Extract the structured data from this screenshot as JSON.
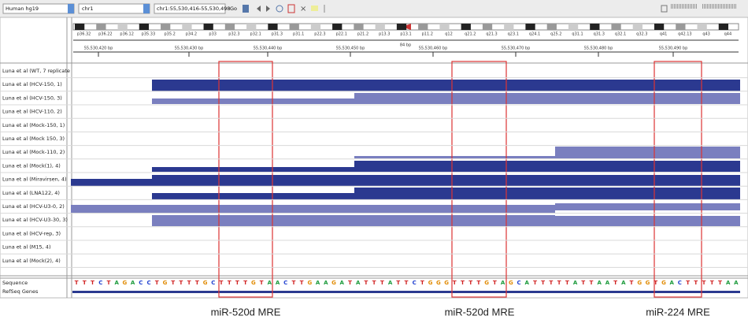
{
  "toolbar": {
    "genome": "Human hg19",
    "chromosome": "chr1",
    "locus": "chr1:55,530,416-55,530,498",
    "go": "Go"
  },
  "ideogram_bands": [
    "p36.32",
    "p36.22",
    "p36.12",
    "p35.33",
    "p35.2",
    "p34.2",
    "p33",
    "p32.3",
    "p32.1",
    "p31.3",
    "p31.1",
    "p22.3",
    "p22.1",
    "p21.2",
    "p13.3",
    "p13.1",
    "p11.2",
    "q12",
    "q21.2",
    "q21.3",
    "q23.1",
    "q24.1",
    "q25.2",
    "q31.1",
    "q31.3",
    "q32.1",
    "q32.3",
    "q41",
    "q42.13",
    "q43",
    "q44"
  ],
  "scale": "84 bp",
  "ruler_ticks": [
    "55,530,420 bp",
    "55,530,430 bp",
    "55,530,440 bp",
    "55,530,450 bp",
    "55,530,460 bp",
    "55,530,470 bp",
    "55,530,480 bp",
    "55,530,490 bp"
  ],
  "tracks": [
    "Luna et al (WT, 7 replicate",
    "Luna et al (HCV-150, 1)",
    "Luna et al (HCV-150, 3)",
    "Luna et al (HCV-110, 2)",
    "Luna et al (Mock-150, 1)",
    "Luna et al (Mock 150, 3)",
    "Luna et al (Mock-110, 2)",
    "Luna et al (Mock(1), 4)",
    "Luna et al (Miravirsen, 4)",
    "Luna et al (LNA122, 4)",
    "Luna et al (HCV-U3-0, 2)",
    "Luna et al (HCV-U3-30, 3)",
    "Luna et al (HCV-rep, 3)",
    "Luna et al (M15, 4)",
    "Luna et al (Mock(2), 4)"
  ],
  "bottom_tracks": [
    "Sequence",
    "RefSeq Genes"
  ],
  "sequence": "TTTCTAGACCTGTTTTGCTTTTGTAACTTGAAGATATTTATTCTGGGTTTTGTAGCATTTTTATTAATATGGTGACTTTTTAA",
  "annotations": [
    "miR-520d MRE",
    "miR-520d MRE",
    "miR-224 MRE"
  ]
}
